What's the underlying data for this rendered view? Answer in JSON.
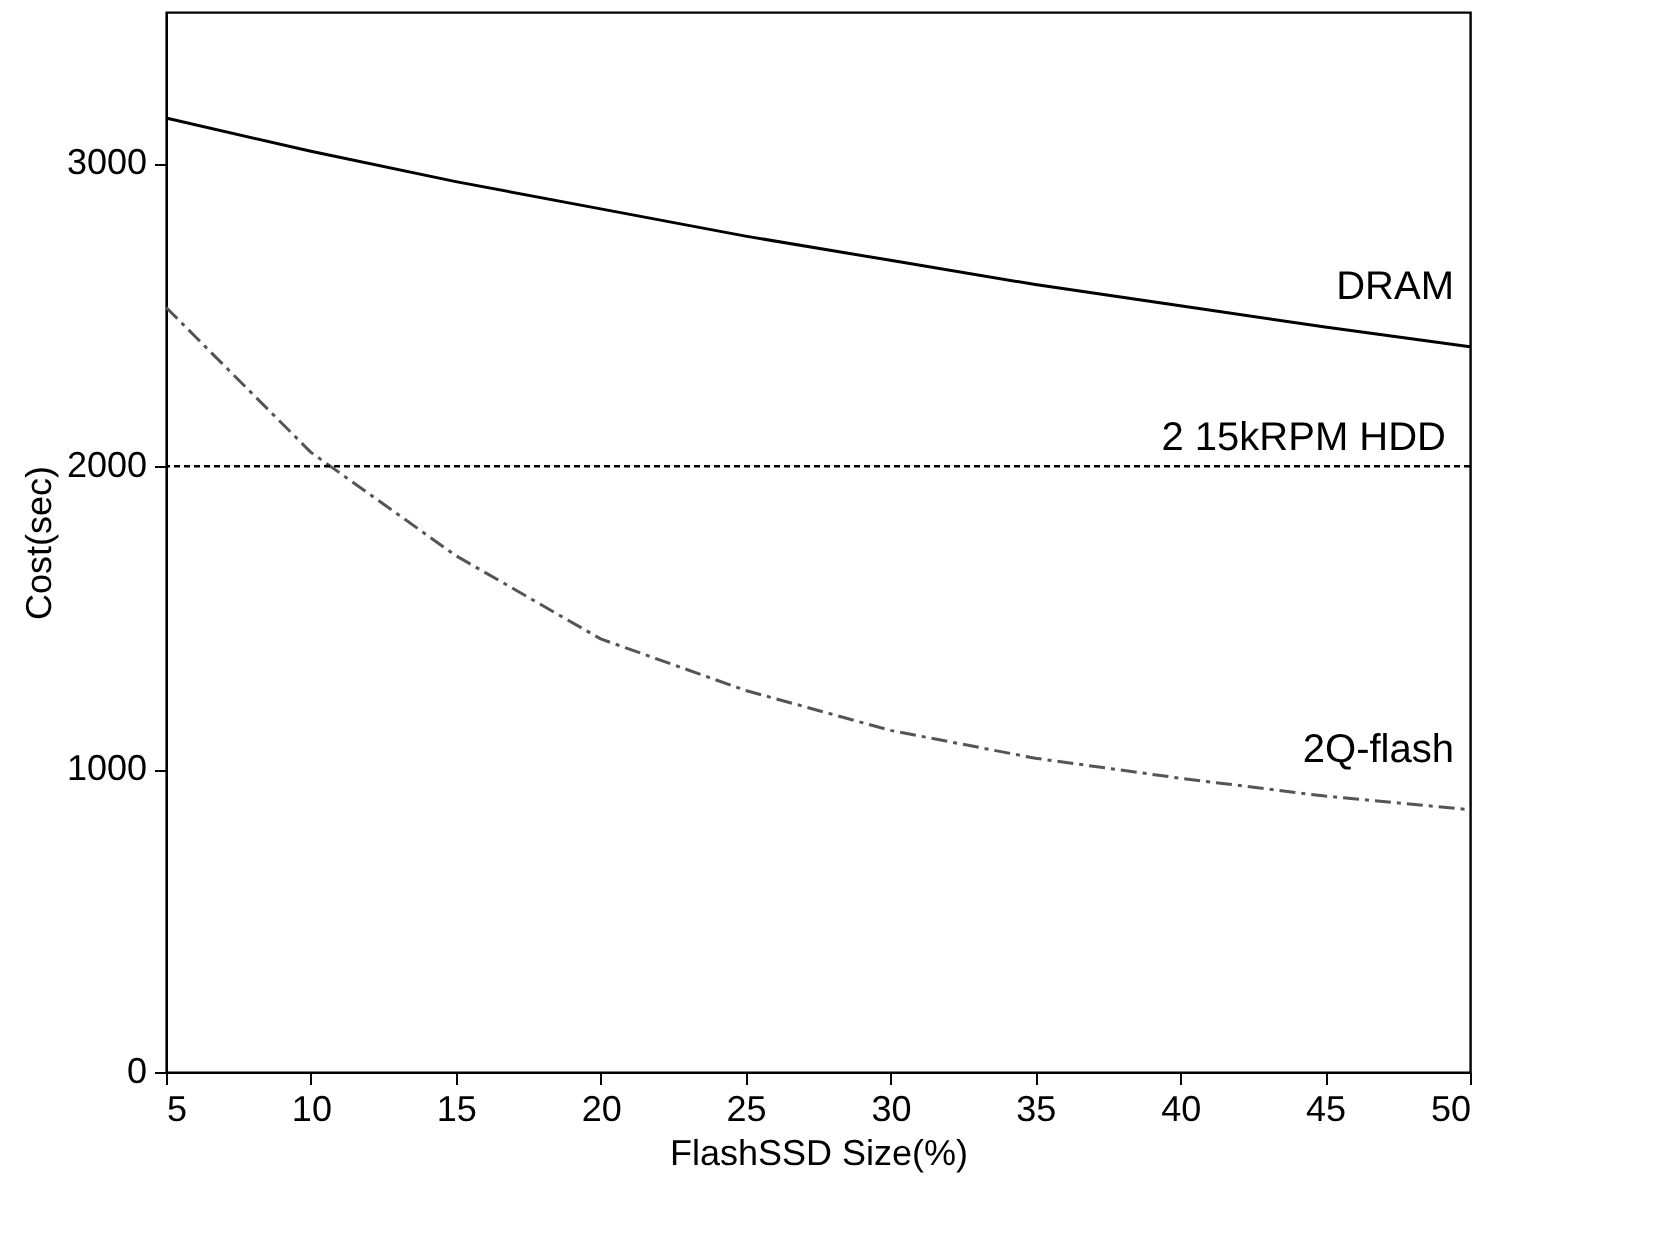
{
  "chart_data": {
    "type": "line",
    "xlabel": "FlashSSD Size(%)",
    "ylabel": "Cost(sec)",
    "x": [
      5,
      10,
      15,
      20,
      25,
      30,
      35,
      40,
      45,
      50
    ],
    "series": [
      {
        "name": "DRAM",
        "color": "#000000",
        "line_style": "solid",
        "values": [
          3150,
          3040,
          2940,
          2850,
          2760,
          2680,
          2600,
          2530,
          2460,
          2395
        ]
      },
      {
        "name": "2Q-flash",
        "color": "#555555",
        "line_style": "dashed",
        "values": [
          2525,
          2046,
          1705,
          1430,
          1260,
          1128,
          1036,
          970,
          911,
          866
        ]
      }
    ],
    "ref_lines": [
      {
        "axis": "y",
        "value": 2000,
        "label": "2 15kRPM HDD",
        "color": "#000000",
        "line_style": "dotted"
      }
    ],
    "xlim": [
      5,
      50
    ],
    "xticks": [
      5,
      10,
      15,
      20,
      25,
      30,
      35,
      40,
      45,
      50
    ],
    "ylim": [
      0,
      3500
    ],
    "yticks": [
      0,
      1000,
      2000,
      3000
    ],
    "grid": false,
    "marker": "none"
  }
}
